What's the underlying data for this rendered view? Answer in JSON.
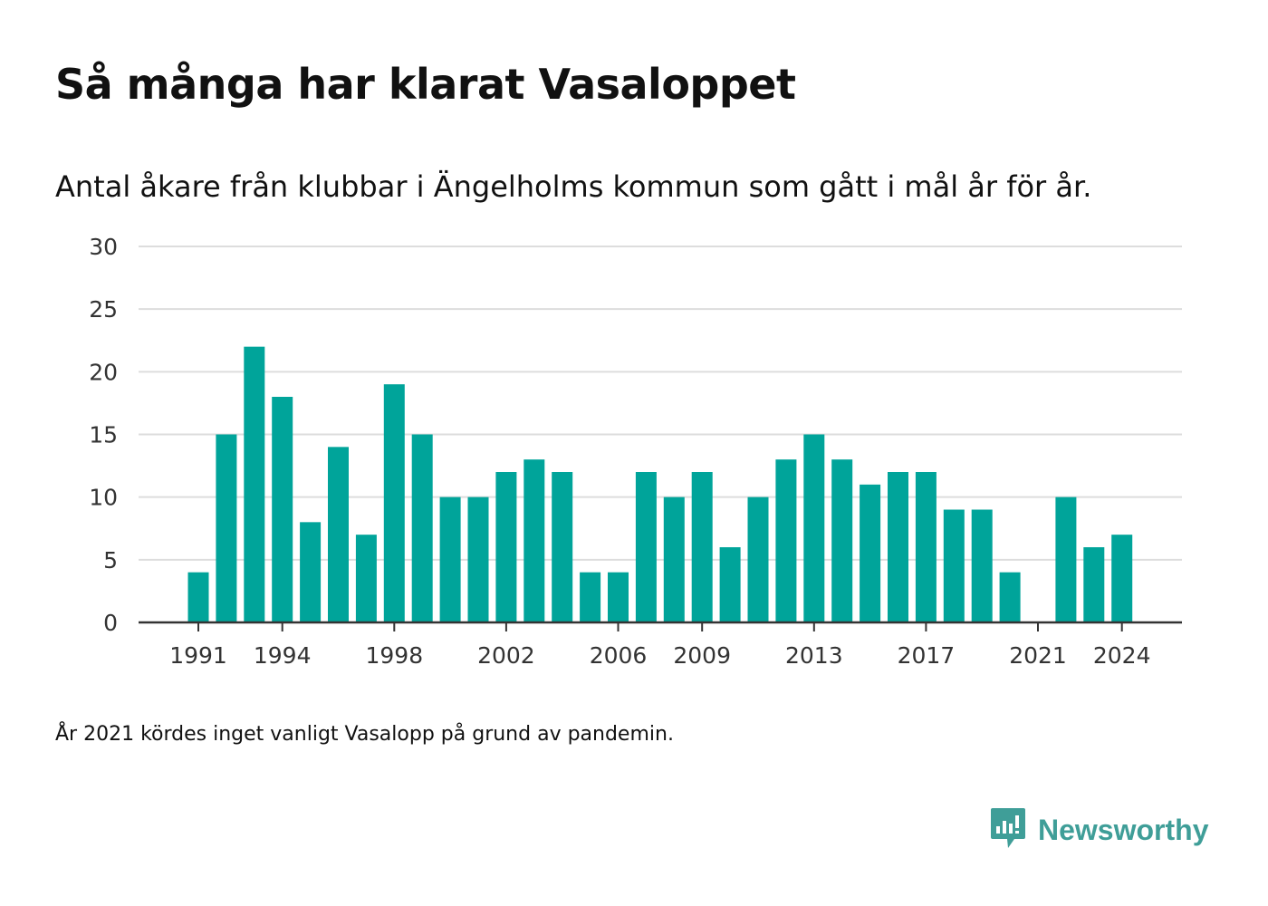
{
  "title": "Så många har klarat Vasaloppet",
  "subtitle": "Antal åkare från klubbar i Ängelholms kommun som gått i mål år för år.",
  "footnote": "År 2021 kördes inget vanligt Vasalopp på grund av pandemin.",
  "brand": {
    "name": "Newsworthy",
    "icon": "newsworthy-logo-icon",
    "color": "#3f9e98"
  },
  "colors": {
    "bar": "#00a49a",
    "grid": "#dddddd",
    "axis": "#333333"
  },
  "chart_data": {
    "type": "bar",
    "categories": [
      1991,
      1992,
      1993,
      1994,
      1995,
      1996,
      1997,
      1998,
      1999,
      2000,
      2001,
      2002,
      2003,
      2004,
      2005,
      2006,
      2007,
      2008,
      2009,
      2010,
      2011,
      2012,
      2013,
      2014,
      2015,
      2016,
      2017,
      2018,
      2019,
      2020,
      2021,
      2022,
      2023,
      2024
    ],
    "values": [
      4,
      15,
      22,
      18,
      8,
      14,
      7,
      19,
      15,
      10,
      10,
      12,
      13,
      12,
      4,
      4,
      12,
      10,
      12,
      6,
      10,
      13,
      15,
      13,
      11,
      12,
      12,
      9,
      9,
      4,
      0,
      10,
      6,
      7
    ],
    "x_tick_labels": [
      "1991",
      "1994",
      "1998",
      "2002",
      "2006",
      "2009",
      "2013",
      "2017",
      "2021",
      "2024"
    ],
    "y_ticks": [
      0,
      5,
      10,
      15,
      20,
      25,
      30
    ],
    "ylim": [
      0,
      30
    ],
    "grid": true,
    "legend": "none",
    "xlabel": "",
    "ylabel": ""
  }
}
